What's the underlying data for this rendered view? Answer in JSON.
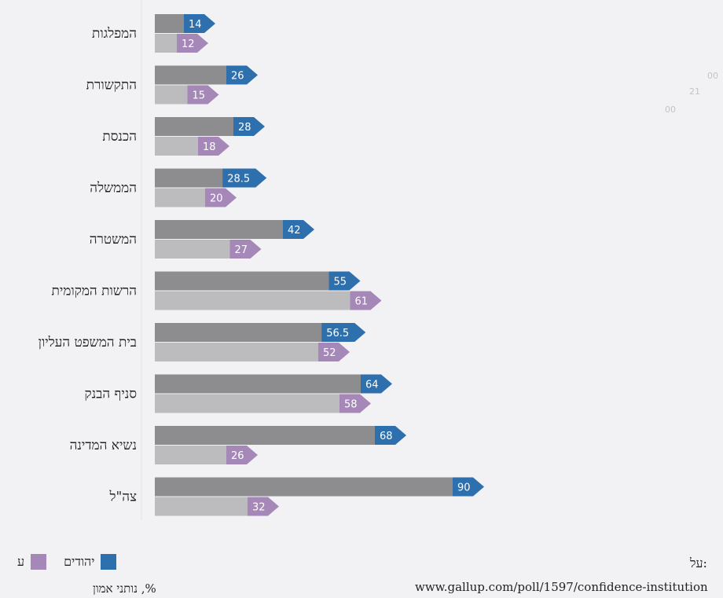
{
  "chart_data": {
    "type": "bar",
    "orientation": "horizontal",
    "categories": [
      "המפלגות",
      "התקשורת",
      "הכנסת",
      "הממשלה",
      "המשטרה",
      "הרשות המקומית",
      "בית המשפט העליון",
      "סניף הבנק",
      "נשיא המדינה",
      "צה\"ל"
    ],
    "series": [
      {
        "name": "יהודים",
        "color": "#2e6fad",
        "values": [
          14,
          26,
          28,
          28.5,
          42,
          55,
          56.5,
          64,
          68,
          90
        ]
      },
      {
        "name": "ערבים",
        "color": "#a688b8",
        "values": [
          12,
          15,
          18,
          20,
          27,
          61,
          52,
          58,
          26,
          32
        ]
      }
    ],
    "value_labels": [
      [
        "14",
        "26",
        "28",
        "28.5",
        "42",
        "55",
        "56.5",
        "64",
        "68",
        "90"
      ],
      [
        "12",
        "15",
        "18",
        "20",
        "27",
        "61",
        "52",
        "58",
        "26",
        "32"
      ]
    ],
    "bar_colors": {
      "primary_bar": "#8d8d8f",
      "secondary_bar": "#bcbcbe"
    },
    "xlabel": "%, נותני אמון",
    "xlim": [
      0,
      100
    ],
    "grid": false,
    "legend_position": "bottom-left",
    "legend_swatch_series": [
      "ערבים",
      "יהודים"
    ],
    "legend_text_series": [
      "יהודים",
      "ע"
    ],
    "faint_text": [
      "00",
      "21",
      "00"
    ]
  },
  "source": {
    "label": "על:",
    "url": "www.gallup.com/poll/1597/confidence-institution"
  }
}
